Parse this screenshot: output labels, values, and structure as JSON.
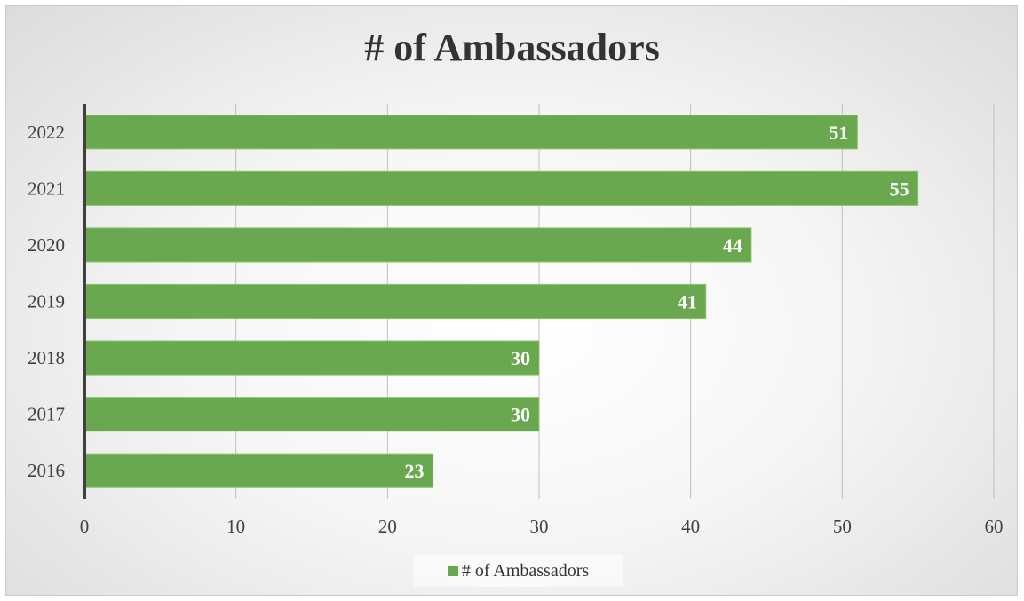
{
  "chart_data": {
    "type": "bar",
    "orientation": "horizontal",
    "title": "# of Ambassadors",
    "categories": [
      "2022",
      "2021",
      "2020",
      "2019",
      "2018",
      "2017",
      "2016"
    ],
    "series": [
      {
        "name": "# of Ambassadors",
        "values": [
          51,
          55,
          44,
          41,
          30,
          30,
          23
        ]
      }
    ],
    "x_ticks": [
      "0",
      "10",
      "20",
      "30",
      "40",
      "50",
      "60"
    ],
    "xlim": [
      0,
      60
    ],
    "grid": true,
    "data_labels": true,
    "legend_position": "bottom",
    "bar_color": "#6aa84f",
    "label_color": "#ffffff"
  }
}
